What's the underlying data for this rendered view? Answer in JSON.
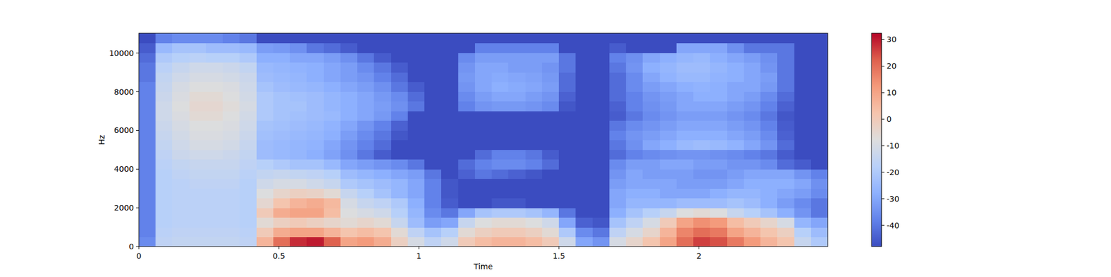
{
  "chart_data": {
    "type": "heatmap",
    "x_label": "Time",
    "y_label": "Hz",
    "xlim": [
      0,
      2.46
    ],
    "ylim": [
      0,
      11025
    ],
    "xticks": [
      0,
      0.5,
      1,
      1.5,
      2
    ],
    "yticks": [
      0,
      2000,
      4000,
      6000,
      8000,
      10000
    ],
    "cells": [
      [
        -36,
        -16,
        -15,
        -15,
        -15,
        -15,
        -16,
        6,
        20,
        28,
        30,
        22,
        10,
        12,
        8,
        -2,
        -10,
        -16,
        -12,
        0,
        4,
        6,
        6,
        4,
        0,
        -12,
        -30,
        -34,
        -10,
        -4,
        2,
        10,
        20,
        26,
        24,
        18,
        12,
        6,
        2,
        -14,
        -20
      ],
      [
        -38,
        -17,
        -16,
        -16,
        -16,
        -16,
        -17,
        0,
        8,
        10,
        10,
        6,
        2,
        4,
        2,
        -6,
        -16,
        -22,
        -18,
        -6,
        -2,
        0,
        0,
        -2,
        -6,
        -20,
        -36,
        -40,
        -16,
        -10,
        -4,
        6,
        16,
        20,
        18,
        10,
        6,
        2,
        -2,
        -18,
        -24
      ],
      [
        -38,
        -18,
        -17,
        -17,
        -17,
        -17,
        -18,
        -6,
        -2,
        0,
        -2,
        -4,
        -6,
        -4,
        -6,
        -14,
        -24,
        -32,
        -30,
        -14,
        -8,
        -6,
        -6,
        -8,
        -12,
        -30,
        -44,
        -46,
        -22,
        -16,
        -10,
        0,
        10,
        14,
        12,
        4,
        0,
        -4,
        -10,
        -26,
        -30
      ],
      [
        -38,
        -18,
        -17,
        -17,
        -17,
        -17,
        -18,
        0,
        8,
        10,
        10,
        4,
        -8,
        -10,
        -12,
        -18,
        -26,
        -36,
        -40,
        -30,
        -22,
        -20,
        -20,
        -22,
        -26,
        -40,
        -48,
        -48,
        -28,
        -22,
        -18,
        -14,
        -8,
        -6,
        -8,
        -14,
        -18,
        -22,
        -28,
        -34,
        -40
      ],
      [
        -38,
        -18,
        -17,
        -17,
        -17,
        -17,
        -18,
        -5,
        2,
        6,
        8,
        5,
        -10,
        -14,
        -16,
        -20,
        -28,
        -38,
        -45,
        -48,
        -48,
        -46,
        -46,
        -48,
        -48,
        -48,
        -48,
        -48,
        -30,
        -26,
        -26,
        -26,
        -24,
        -24,
        -24,
        -22,
        -24,
        -28,
        -32,
        -36,
        -40
      ],
      [
        -38,
        -18,
        -17,
        -17,
        -17,
        -17,
        -18,
        -8,
        -4,
        -2,
        -3,
        -6,
        -14,
        -18,
        -22,
        -26,
        -30,
        -38,
        -46,
        -48,
        -48,
        -48,
        -48,
        -48,
        -48,
        -48,
        -48,
        -48,
        -30,
        -28,
        -28,
        -30,
        -30,
        -30,
        -28,
        -26,
        -26,
        -28,
        -30,
        -32,
        -36
      ],
      [
        -38,
        -18,
        -17,
        -16,
        -16,
        -16,
        -18,
        -12,
        -10,
        -10,
        -12,
        -14,
        -20,
        -22,
        -24,
        -26,
        -30,
        -38,
        -46,
        -48,
        -48,
        -48,
        -48,
        -48,
        -48,
        -48,
        -48,
        -48,
        -32,
        -30,
        -30,
        -30,
        -32,
        -32,
        -32,
        -30,
        -28,
        -28,
        -28,
        -30,
        -35
      ],
      [
        -38,
        -18,
        -16,
        -15,
        -15,
        -15,
        -17,
        -15,
        -14,
        -15,
        -16,
        -18,
        -24,
        -26,
        -28,
        -30,
        -32,
        -40,
        -48,
        -44,
        -40,
        -42,
        -44,
        -46,
        -48,
        -48,
        -48,
        -48,
        -34,
        -30,
        -32,
        -32,
        -32,
        -34,
        -34,
        -32,
        -30,
        -30,
        -30,
        -34,
        -38
      ],
      [
        -38,
        -17,
        -15,
        -14,
        -14,
        -14,
        -16,
        -18,
        -20,
        -22,
        -22,
        -25,
        -30,
        -32,
        -34,
        -36,
        -40,
        -48,
        -48,
        -42,
        -38,
        -36,
        -36,
        -38,
        -42,
        -48,
        -48,
        -48,
        -36,
        -32,
        -32,
        -30,
        -30,
        -32,
        -32,
        -34,
        -34,
        -36,
        -42,
        -45,
        -48
      ],
      [
        -38,
        -16,
        -13,
        -12,
        -12,
        -13,
        -15,
        -24,
        -25,
        -26,
        -28,
        -31,
        -35,
        -40,
        -45,
        -48,
        -48,
        -48,
        -48,
        -48,
        -42,
        -38,
        -38,
        -40,
        -45,
        -48,
        -48,
        -48,
        -42,
        -38,
        -36,
        -35,
        -34,
        -34,
        -35,
        -36,
        -38,
        -40,
        -45,
        -48,
        -48
      ],
      [
        -38,
        -15,
        -12,
        -10,
        -10,
        -11,
        -14,
        -24,
        -25,
        -26,
        -27,
        -30,
        -34,
        -38,
        -42,
        -48,
        -48,
        -48,
        -48,
        -48,
        -48,
        -48,
        -48,
        -48,
        -48,
        -48,
        -48,
        -48,
        -40,
        -35,
        -30,
        -28,
        -25,
        -24,
        -25,
        -27,
        -30,
        -34,
        -42,
        -48,
        -48
      ],
      [
        -38,
        -14,
        -11,
        -9,
        -9,
        -10,
        -13,
        -23,
        -24,
        -25,
        -26,
        -28,
        -32,
        -36,
        -40,
        -46,
        -48,
        -48,
        -48,
        -48,
        -48,
        -48,
        -48,
        -48,
        -48,
        -48,
        -48,
        -48,
        -38,
        -34,
        -32,
        -30,
        -28,
        -28,
        -28,
        -30,
        -32,
        -36,
        -44,
        -48,
        -48
      ],
      [
        -38,
        -13,
        -10,
        -8,
        -8,
        -9,
        -12,
        -22,
        -23,
        -24,
        -25,
        -27,
        -30,
        -34,
        -38,
        -44,
        -48,
        -48,
        -48,
        -48,
        -48,
        -48,
        -48,
        -48,
        -48,
        -48,
        -48,
        -48,
        -40,
        -36,
        -34,
        -32,
        -30,
        -30,
        -30,
        -32,
        -34,
        -38,
        -45,
        -48,
        -48
      ],
      [
        -38,
        -12,
        -9,
        -6,
        -6,
        -8,
        -11,
        -20,
        -22,
        -23,
        -24,
        -25,
        -28,
        -30,
        -33,
        -38,
        -48,
        -48,
        -48,
        -48,
        -48,
        -48,
        -48,
        -48,
        -48,
        -48,
        -48,
        -48,
        -45,
        -40,
        -36,
        -34,
        -32,
        -32,
        -32,
        -34,
        -36,
        -40,
        -46,
        -48,
        -48
      ],
      [
        -38,
        -12,
        -8,
        -5,
        -5,
        -7,
        -10,
        -20,
        -22,
        -22,
        -24,
        -26,
        -28,
        -30,
        -32,
        -35,
        -40,
        -48,
        -48,
        -38,
        -34,
        -33,
        -33,
        -34,
        -36,
        -46,
        -48,
        -48,
        -44,
        -38,
        -35,
        -33,
        -30,
        -30,
        -30,
        -32,
        -34,
        -38,
        -44,
        -48,
        -48
      ],
      [
        -38,
        -13,
        -9,
        -6,
        -6,
        -8,
        -11,
        -20,
        -22,
        -23,
        -24,
        -26,
        -28,
        -30,
        -33,
        -36,
        -42,
        -48,
        -48,
        -36,
        -32,
        -30,
        -30,
        -32,
        -34,
        -44,
        -48,
        -48,
        -42,
        -38,
        -34,
        -32,
        -30,
        -28,
        -28,
        -30,
        -32,
        -36,
        -42,
        -48,
        -48
      ],
      [
        -38,
        -14,
        -10,
        -8,
        -8,
        -9,
        -12,
        -22,
        -24,
        -25,
        -26,
        -28,
        -30,
        -32,
        -35,
        -40,
        -45,
        -48,
        -48,
        -34,
        -30,
        -28,
        -29,
        -30,
        -32,
        -42,
        -48,
        -48,
        -42,
        -36,
        -32,
        -30,
        -28,
        -27,
        -28,
        -30,
        -30,
        -33,
        -40,
        -48,
        -48
      ],
      [
        -40,
        -15,
        -12,
        -10,
        -10,
        -11,
        -13,
        -24,
        -25,
        -26,
        -28,
        -30,
        -32,
        -34,
        -38,
        -42,
        -48,
        -48,
        -48,
        -33,
        -30,
        -29,
        -30,
        -31,
        -33,
        -42,
        -48,
        -48,
        -42,
        -36,
        -30,
        -27,
        -25,
        -25,
        -27,
        -28,
        -30,
        -32,
        -40,
        -48,
        -48
      ],
      [
        -40,
        -17,
        -14,
        -12,
        -12,
        -13,
        -15,
        -25,
        -26,
        -27,
        -28,
        -30,
        -32,
        -36,
        -40,
        -45,
        -48,
        -48,
        -48,
        -34,
        -30,
        -30,
        -32,
        -32,
        -34,
        -40,
        -48,
        -48,
        -40,
        -34,
        -28,
        -26,
        -24,
        -24,
        -26,
        -28,
        -30,
        -34,
        -40,
        -48,
        -48
      ],
      [
        -42,
        -20,
        -18,
        -17,
        -18,
        -18,
        -20,
        -28,
        -28,
        -30,
        -30,
        -32,
        -35,
        -40,
        -45,
        -48,
        -48,
        -48,
        -48,
        -36,
        -32,
        -32,
        -32,
        -32,
        -32,
        -40,
        -48,
        -48,
        -38,
        -35,
        -30,
        -28,
        -26,
        -25,
        -28,
        -30,
        -32,
        -35,
        -40,
        -48,
        -48
      ],
      [
        -45,
        -25,
        -22,
        -22,
        -24,
        -24,
        -25,
        -32,
        -33,
        -35,
        -40,
        -42,
        -45,
        -48,
        -48,
        -48,
        -48,
        -48,
        -48,
        -48,
        -38,
        -38,
        -38,
        -38,
        -38,
        -48,
        -48,
        -48,
        -45,
        -48,
        -48,
        -48,
        -30,
        -30,
        -30,
        -35,
        -40,
        -40,
        -40,
        -48,
        -48
      ],
      [
        -48,
        -38,
        -36,
        -36,
        -36,
        -38,
        -40,
        -48,
        -48,
        -48,
        -48,
        -48,
        -48,
        -48,
        -48,
        -48,
        -48,
        -48,
        -48,
        -48,
        -48,
        -48,
        -48,
        -48,
        -48,
        -48,
        -48,
        -48,
        -48,
        -48,
        -48,
        -48,
        -48,
        -48,
        -48,
        -48,
        -48,
        -48,
        -48,
        -48,
        -48
      ]
    ],
    "colorbar_range": [
      -48,
      32.4
    ],
    "colorbar_ticks": [
      -40,
      -30,
      -20,
      -10,
      0,
      10,
      20,
      30
    ]
  }
}
